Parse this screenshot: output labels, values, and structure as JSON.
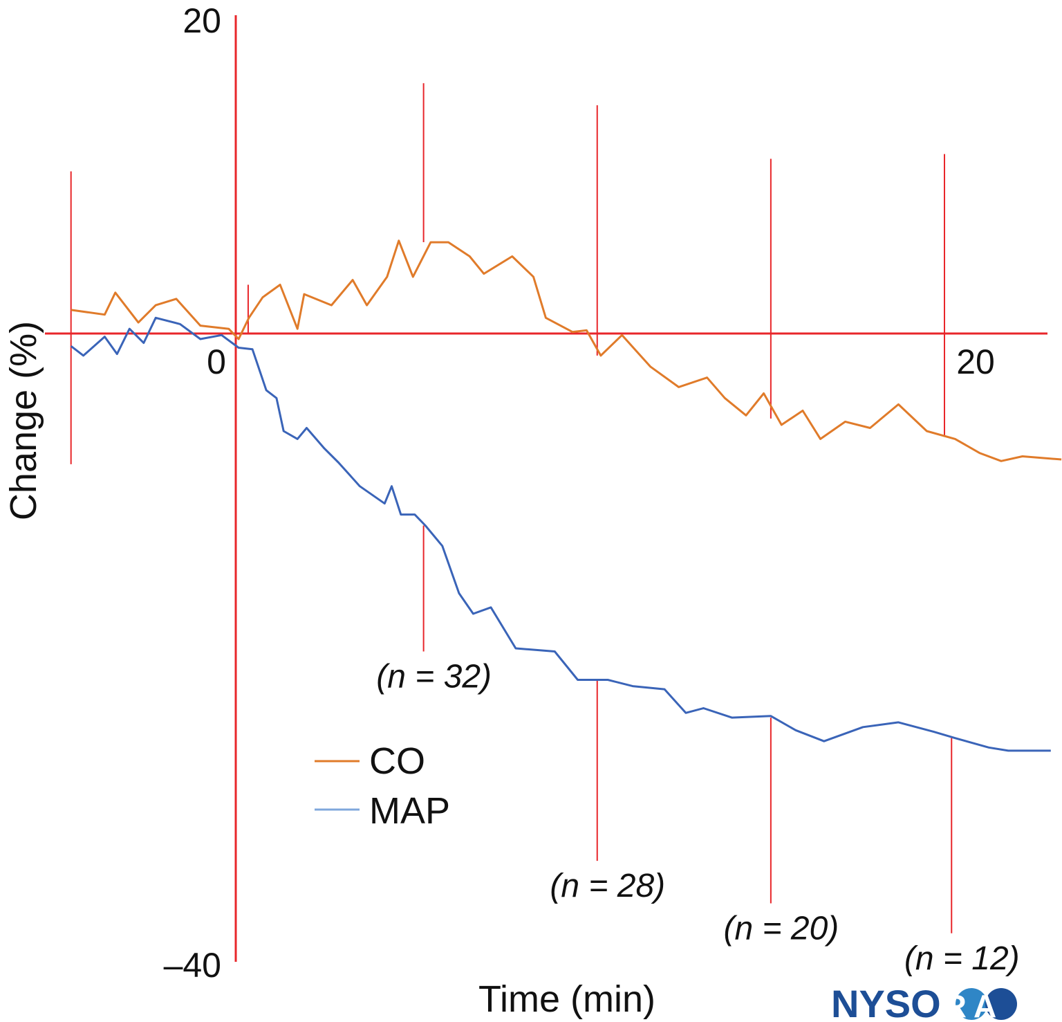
{
  "chart_data": {
    "type": "line",
    "title": "",
    "xlabel": "Time (min)",
    "ylabel": "Change (%)",
    "xlim": [
      -4.65,
      23.3
    ],
    "ylim": [
      -40,
      20
    ],
    "grid": false,
    "legend_placement": "bottom-left",
    "x_ticks": [
      {
        "value": 0,
        "label": "0"
      },
      {
        "value": 20,
        "label": "20"
      }
    ],
    "y_ticks": [
      {
        "value": 20,
        "label": "20"
      },
      {
        "value": -40,
        "label": "–40"
      }
    ],
    "series": [
      {
        "name": "CO",
        "color": "#e07b2a",
        "x": [
          -4.65,
          -3.7,
          -3.4,
          -2.75,
          -2.26,
          -1.68,
          -1.0,
          -0.2,
          0.08,
          0.37,
          0.76,
          1.25,
          1.74,
          1.93,
          2.7,
          3.3,
          3.7,
          4.27,
          4.6,
          5.0,
          5.5,
          6.0,
          6.6,
          7.0,
          7.8,
          8.4,
          8.75,
          9.5,
          9.9,
          10.3,
          10.9,
          11.7,
          12.5,
          13.3,
          13.8,
          14.4,
          14.9,
          15.4,
          16.0,
          16.5,
          17.2,
          17.9,
          18.7,
          19.5,
          20.3,
          21.0,
          21.6,
          22.2,
          23.3
        ],
        "y": [
          1.5,
          1.2,
          2.6,
          0.7,
          1.8,
          2.2,
          0.5,
          0.3,
          -0.35,
          1.0,
          2.3,
          3.1,
          0.3,
          2.5,
          1.8,
          3.4,
          1.8,
          3.6,
          5.9,
          3.6,
          5.8,
          5.8,
          4.9,
          3.8,
          4.9,
          3.6,
          1.0,
          0.1,
          0.2,
          -1.4,
          -0.1,
          -2.1,
          -3.4,
          -2.8,
          -4.1,
          -5.2,
          -3.8,
          -5.8,
          -4.9,
          -6.7,
          -5.6,
          -6.0,
          -4.5,
          -6.2,
          -6.7,
          -7.6,
          -8.1,
          -7.8,
          -8.0
        ]
      },
      {
        "name": "MAP",
        "color": "#3a64b8",
        "legend_color": "#7fa7dc",
        "x": [
          -4.65,
          -4.3,
          -3.7,
          -3.35,
          -3.0,
          -2.6,
          -2.26,
          -1.57,
          -1.0,
          -0.4,
          0.08,
          0.47,
          0.86,
          1.15,
          1.35,
          1.74,
          2.0,
          2.5,
          2.9,
          3.5,
          4.2,
          4.4,
          4.66,
          5.05,
          5.35,
          5.83,
          6.3,
          6.7,
          7.2,
          7.9,
          9.0,
          9.65,
          10.5,
          11.2,
          12.1,
          12.7,
          13.2,
          14.0,
          15.1,
          15.8,
          16.6,
          17.7,
          18.7,
          19.7,
          20.3,
          21.25,
          21.8,
          23.0
        ],
        "y": [
          -0.8,
          -1.4,
          -0.2,
          -1.3,
          0.3,
          -0.6,
          1.0,
          0.6,
          -0.35,
          -0.1,
          -0.9,
          -1.0,
          -3.6,
          -4.1,
          -6.2,
          -6.7,
          -6.0,
          -7.3,
          -8.2,
          -9.7,
          -10.8,
          -9.7,
          -11.5,
          -11.5,
          -12.2,
          -13.5,
          -16.5,
          -17.8,
          -17.4,
          -20.0,
          -20.2,
          -22.0,
          -22.0,
          -22.4,
          -22.6,
          -24.1,
          -23.8,
          -24.4,
          -24.3,
          -25.2,
          -25.9,
          -25.0,
          -24.7,
          -25.3,
          -25.7,
          -26.3,
          -26.5,
          -26.5
        ]
      }
    ],
    "error_bars": [
      {
        "series": "CO",
        "x": -4.65,
        "low": -8.3,
        "high": 10.3
      },
      {
        "series": "CO",
        "x": 0.35,
        "low": 0.0,
        "high": 3.1
      },
      {
        "series": "CO",
        "x": 5.3,
        "low": 5.8,
        "high": 15.9
      },
      {
        "series": "CO",
        "x": 10.2,
        "low": -1.4,
        "high": 14.5
      },
      {
        "series": "CO",
        "x": 15.1,
        "low": -5.4,
        "high": 11.1
      },
      {
        "series": "CO",
        "x": 20.0,
        "low": -6.5,
        "high": 11.4
      },
      {
        "series": "MAP",
        "x": 5.3,
        "low": -20.2,
        "high": -12.2
      },
      {
        "series": "MAP",
        "x": 10.2,
        "low": -33.5,
        "high": -22.0
      },
      {
        "series": "MAP",
        "x": 15.1,
        "low": -36.2,
        "high": -24.4
      },
      {
        "series": "MAP",
        "x": 20.2,
        "low": -38.1,
        "high": -25.7
      }
    ],
    "annotations": [
      {
        "text": "(n = 32)",
        "x": 5.3
      },
      {
        "text": "(n = 28)",
        "x": 10.2
      },
      {
        "text": "(n = 20)",
        "x": 15.1
      },
      {
        "text": "(n = 12)",
        "x": 20.2
      }
    ],
    "axis_color": "#e8262a"
  },
  "watermark": {
    "text": "NYSORA"
  }
}
